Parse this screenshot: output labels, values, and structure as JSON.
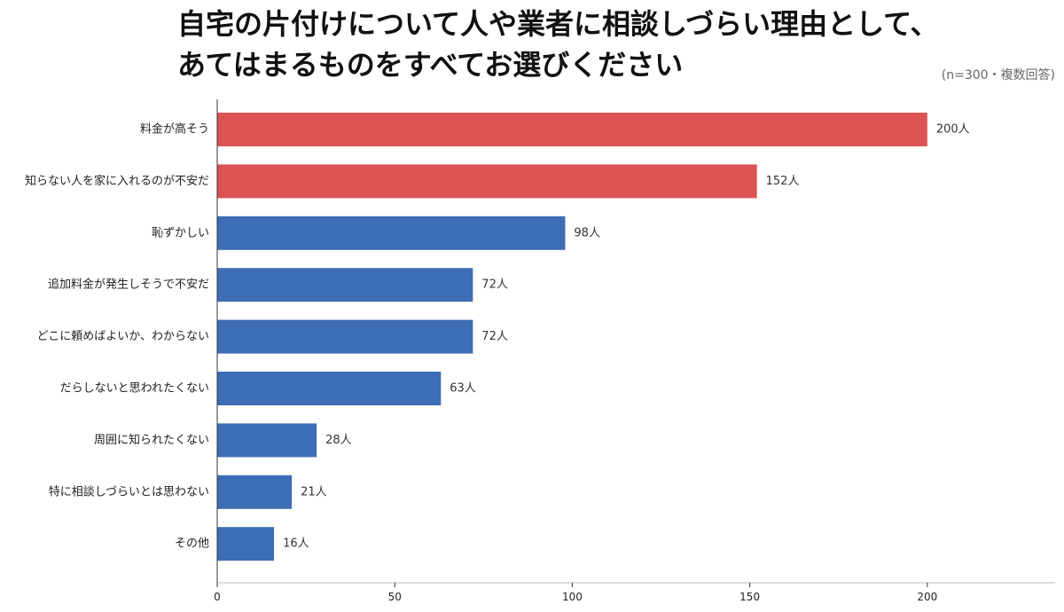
{
  "header": {
    "title_line1": "自宅の片付けについて人や業者に相談しづらい理由として、",
    "title_line2": "あてはまるものをすべてお選びください",
    "note": "(n=300・複数回答)"
  },
  "chart_data": {
    "type": "bar",
    "orientation": "horizontal",
    "title": "自宅の片付けについて人や業者に相談しづらい理由として、あてはまるものをすべてお選びください",
    "subtitle": "(n=300・複数回答)",
    "categories": [
      "料金が高そう",
      "知らない人を家に入れるのが不安だ",
      "恥ずかしい",
      "追加料金が発生しそうで不安だ",
      "どこに頼めばよいか、わからない",
      "だらしないと思われたくない",
      "周囲に知られたくない",
      "特に相談しづらいとは思わない",
      "その他"
    ],
    "values": [
      200,
      152,
      98,
      72,
      72,
      63,
      28,
      21,
      16
    ],
    "value_labels": [
      "200人",
      "152人",
      "98人",
      "72人",
      "72人",
      "63人",
      "28人",
      "21人",
      "16人"
    ],
    "bar_colors": [
      "#dc5353",
      "#dc5353",
      "#3d6db5",
      "#3d6db5",
      "#3d6db5",
      "#3d6db5",
      "#3d6db5",
      "#3d6db5",
      "#3d6db5"
    ],
    "xlim": [
      0,
      236
    ],
    "xticks": [
      0,
      50,
      100,
      150,
      200
    ],
    "xlabel": "",
    "ylabel": "",
    "grid": false,
    "legend": "none"
  }
}
